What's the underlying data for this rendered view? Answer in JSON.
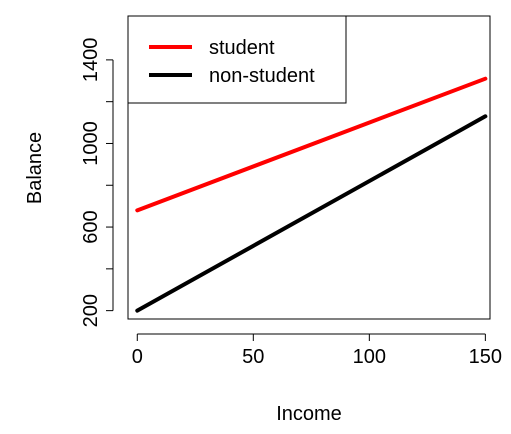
{
  "chart_data": {
    "type": "line",
    "title": "",
    "xlabel": "Income",
    "ylabel": "Balance",
    "xlim": [
      -4,
      152
    ],
    "ylim": [
      160,
      1610
    ],
    "x_ticks": [
      0,
      50,
      100,
      150
    ],
    "x_tick_labels": [
      "0",
      "50",
      "100",
      "150"
    ],
    "y_ticks": [
      200,
      400,
      600,
      800,
      1000,
      1200,
      1400
    ],
    "y_tick_labels": [
      "200",
      "",
      "600",
      "",
      "1000",
      "",
      "1400"
    ],
    "grid": false,
    "legend_position": "top-left",
    "series": [
      {
        "name": "student",
        "color": "#ff0000",
        "x": [
          0,
          150
        ],
        "y": [
          680,
          1310
        ]
      },
      {
        "name": "non-student",
        "color": "#000000",
        "x": [
          0,
          150
        ],
        "y": [
          200,
          1130
        ]
      }
    ]
  }
}
